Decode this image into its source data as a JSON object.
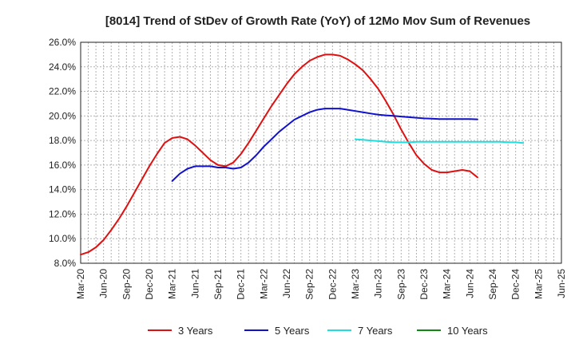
{
  "chart_data": {
    "type": "line",
    "title": "[8014]  Trend of StDev of Growth Rate (YoY) of 12Mo Mov Sum of Revenues",
    "xlabel": "",
    "ylabel": "",
    "ylim": [
      8.0,
      26.0
    ],
    "yticks": [
      "8.0%",
      "10.0%",
      "12.0%",
      "14.0%",
      "16.0%",
      "18.0%",
      "20.0%",
      "22.0%",
      "24.0%",
      "26.0%"
    ],
    "x_tick_labels": [
      "Mar-20",
      "Jun-20",
      "Sep-20",
      "Dec-20",
      "Mar-21",
      "Jun-21",
      "Sep-21",
      "Dec-21",
      "Mar-22",
      "Jun-22",
      "Sep-22",
      "Dec-22",
      "Mar-23",
      "Jun-23",
      "Sep-23",
      "Dec-23",
      "Mar-24",
      "Jun-24",
      "Sep-24",
      "Dec-24",
      "Mar-25",
      "Jun-25"
    ],
    "grid": true,
    "legend_position": "bottom",
    "series": [
      {
        "name": "3 Years",
        "color": "#dd1111",
        "start_index": 0,
        "values": [
          8.7,
          8.9,
          9.3,
          9.9,
          10.7,
          11.6,
          12.6,
          13.7,
          14.8,
          15.9,
          16.9,
          17.8,
          18.2,
          18.3,
          18.1,
          17.6,
          17.0,
          16.4,
          16.0,
          15.9,
          16.2,
          16.9,
          17.8,
          18.8,
          19.8,
          20.8,
          21.7,
          22.6,
          23.4,
          24.0,
          24.5,
          24.8,
          25.0,
          25.0,
          24.9,
          24.6,
          24.2,
          23.7,
          23.0,
          22.2,
          21.2,
          20.1,
          18.9,
          17.8,
          16.8,
          16.1,
          15.6,
          15.4,
          15.4,
          15.5,
          15.6,
          15.5,
          15.0
        ]
      },
      {
        "name": "5 Years",
        "color": "#1111cc",
        "start_index": 12,
        "values": [
          14.7,
          15.3,
          15.7,
          15.9,
          15.9,
          15.9,
          15.8,
          15.8,
          15.7,
          15.8,
          16.2,
          16.8,
          17.5,
          18.1,
          18.7,
          19.2,
          19.7,
          20.0,
          20.3,
          20.5,
          20.6,
          20.6,
          20.6,
          20.5,
          20.4,
          20.3,
          20.2,
          20.1,
          20.05,
          20.0,
          19.95,
          19.9,
          19.85,
          19.8,
          19.78,
          19.75,
          19.75,
          19.75,
          19.75,
          19.75,
          19.72
        ]
      },
      {
        "name": "7 Years",
        "color": "#22dddd",
        "start_index": 36,
        "values": [
          18.1,
          18.05,
          18.0,
          17.95,
          17.9,
          17.85,
          17.85,
          17.85,
          17.9,
          17.9,
          17.9,
          17.9,
          17.9,
          17.9,
          17.9,
          17.9,
          17.9,
          17.9,
          17.9,
          17.9,
          17.85,
          17.85,
          17.8
        ]
      },
      {
        "name": "10 Years",
        "color": "#118811",
        "start_index": 0,
        "values": []
      }
    ]
  }
}
